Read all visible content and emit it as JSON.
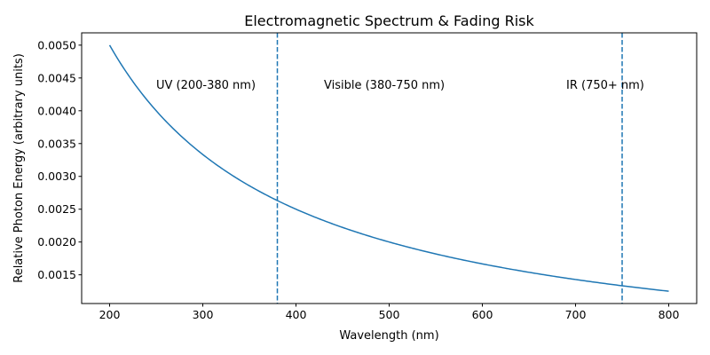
{
  "chart_data": {
    "type": "line",
    "title": "Electromagnetic Spectrum & Fading Risk",
    "xlabel": "Wavelength (nm)",
    "ylabel": "Relative Photon Energy (arbitrary units)",
    "xlim": [
      170,
      830
    ],
    "ylim": [
      0.0010625,
      0.0051875
    ],
    "xticks": [
      200,
      300,
      400,
      500,
      600,
      700,
      800
    ],
    "yticks": [
      "0.0015",
      "0.0020",
      "0.0025",
      "0.0030",
      "0.0035",
      "0.0040",
      "0.0045",
      "0.0050"
    ],
    "grid": false,
    "series": [
      {
        "color": "#1f77b4",
        "function": "1/x",
        "x": [
          200,
          250,
          300,
          350,
          380,
          400,
          450,
          500,
          550,
          600,
          650,
          700,
          750,
          800
        ],
        "y": [
          0.005,
          0.004,
          0.003333,
          0.002857,
          0.002632,
          0.0025,
          0.002222,
          0.002,
          0.001818,
          0.001667,
          0.001538,
          0.001429,
          0.001333,
          0.00125
        ]
      }
    ],
    "vlines": [
      {
        "x": 380,
        "style": "dashed",
        "color": "#1f77b4"
      },
      {
        "x": 750,
        "style": "dashed",
        "color": "#1f77b4"
      }
    ],
    "annotations": [
      {
        "text": "UV (200-380 nm)",
        "x": 250,
        "y": 0.0044
      },
      {
        "text": "Visible (380-750 nm)",
        "x": 430,
        "y": 0.0044
      },
      {
        "text": "IR (750+ nm)",
        "x": 690,
        "y": 0.0044
      }
    ]
  }
}
